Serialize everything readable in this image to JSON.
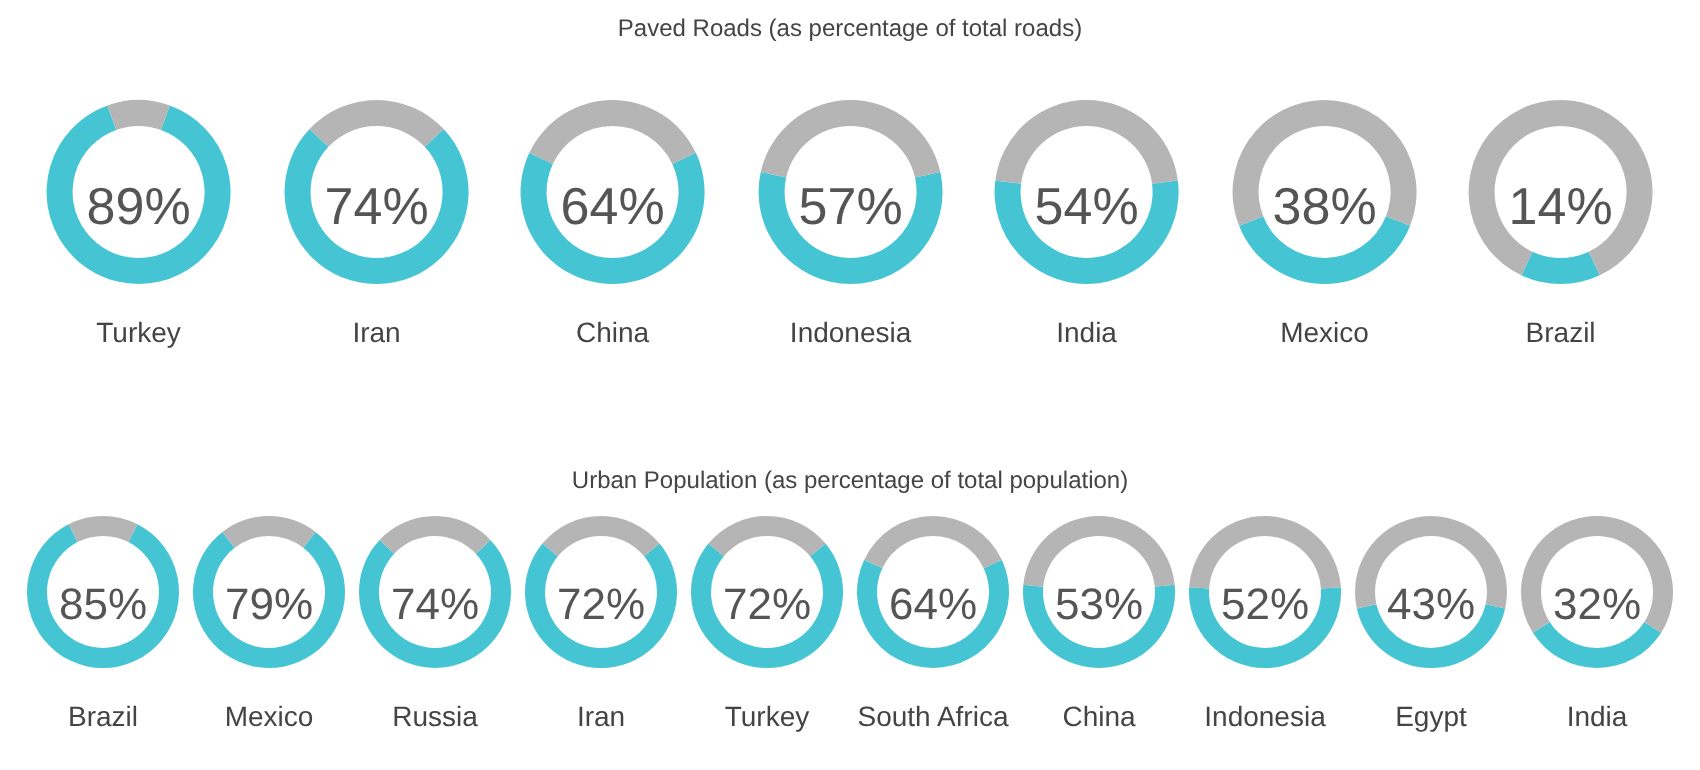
{
  "chart_data": [
    {
      "type": "other",
      "title": "Paved Roads (as percentage of total roads)"
    },
    {
      "type": "donut",
      "categories": [
        "Turkey",
        null
      ],
      "values": [
        89,
        11
      ],
      "value_labels": [
        "89%",
        null
      ],
      "colors": [
        "#45c5d3",
        "#b5b5b5"
      ]
    },
    {
      "type": "donut",
      "categories": [
        "Iran",
        null
      ],
      "values": [
        74,
        26
      ],
      "value_labels": [
        "74%",
        null
      ],
      "colors": [
        "#45c5d3",
        "#b5b5b5"
      ]
    },
    {
      "type": "donut",
      "categories": [
        "China",
        null
      ],
      "values": [
        64,
        36
      ],
      "value_labels": [
        "64%",
        null
      ],
      "colors": [
        "#45c5d3",
        "#b5b5b5"
      ]
    },
    {
      "type": "donut",
      "categories": [
        "Indonesia",
        null
      ],
      "values": [
        57,
        43
      ],
      "value_labels": [
        "57%",
        null
      ],
      "colors": [
        "#45c5d3",
        "#b5b5b5"
      ]
    },
    {
      "type": "donut",
      "categories": [
        "India",
        null
      ],
      "values": [
        54,
        46
      ],
      "value_labels": [
        "54%",
        null
      ],
      "colors": [
        "#45c5d3",
        "#b5b5b5"
      ]
    },
    {
      "type": "donut",
      "categories": [
        "Mexico",
        null
      ],
      "values": [
        38,
        62
      ],
      "value_labels": [
        "38%",
        null
      ],
      "colors": [
        "#45c5d3",
        "#b5b5b5"
      ]
    },
    {
      "type": "donut",
      "categories": [
        "Brazil",
        null
      ],
      "values": [
        14,
        86
      ],
      "value_labels": [
        "14%",
        null
      ],
      "colors": [
        "#45c5d3",
        "#b5b5b5"
      ]
    },
    {
      "type": "other",
      "title": "Urban Population (as percentage of total population)"
    },
    {
      "type": "donut",
      "categories": [
        "Brazil",
        null
      ],
      "values": [
        85,
        15
      ],
      "value_labels": [
        "85%",
        null
      ],
      "colors": [
        "#45c5d3",
        "#b5b5b5"
      ]
    },
    {
      "type": "donut",
      "categories": [
        "Mexico",
        null
      ],
      "values": [
        79,
        21
      ],
      "value_labels": [
        "79%",
        null
      ],
      "colors": [
        "#45c5d3",
        "#b5b5b5"
      ]
    },
    {
      "type": "donut",
      "categories": [
        "Russia",
        null
      ],
      "values": [
        74,
        26
      ],
      "value_labels": [
        "74%",
        null
      ],
      "colors": [
        "#45c5d3",
        "#b5b5b5"
      ]
    },
    {
      "type": "donut",
      "categories": [
        "Iran",
        null
      ],
      "values": [
        72,
        28
      ],
      "value_labels": [
        "72%",
        null
      ],
      "colors": [
        "#45c5d3",
        "#b5b5b5"
      ]
    },
    {
      "type": "donut",
      "categories": [
        "Turkey",
        null
      ],
      "values": [
        72,
        28
      ],
      "value_labels": [
        "72%",
        null
      ],
      "colors": [
        "#45c5d3",
        "#b5b5b5"
      ]
    },
    {
      "type": "donut",
      "categories": [
        "South Africa",
        null
      ],
      "values": [
        64,
        36
      ],
      "value_labels": [
        "64%",
        null
      ],
      "colors": [
        "#45c5d3",
        "#b5b5b5"
      ]
    },
    {
      "type": "donut",
      "categories": [
        "China",
        null
      ],
      "values": [
        53,
        47
      ],
      "value_labels": [
        "53%",
        null
      ],
      "colors": [
        "#45c5d3",
        "#b5b5b5"
      ]
    },
    {
      "type": "donut",
      "categories": [
        "Indonesia",
        null
      ],
      "values": [
        52,
        48
      ],
      "value_labels": [
        "52%",
        null
      ],
      "colors": [
        "#45c5d3",
        "#b5b5b5"
      ]
    },
    {
      "type": "donut",
      "categories": [
        "Egypt",
        null
      ],
      "values": [
        43,
        57
      ],
      "value_labels": [
        "43%",
        null
      ],
      "colors": [
        "#45c5d3",
        "#b5b5b5"
      ]
    },
    {
      "type": "donut",
      "categories": [
        "India",
        null
      ],
      "values": [
        32,
        68
      ],
      "value_labels": [
        "32%",
        null
      ],
      "colors": [
        "#45c5d3",
        "#b5b5b5"
      ]
    }
  ]
}
